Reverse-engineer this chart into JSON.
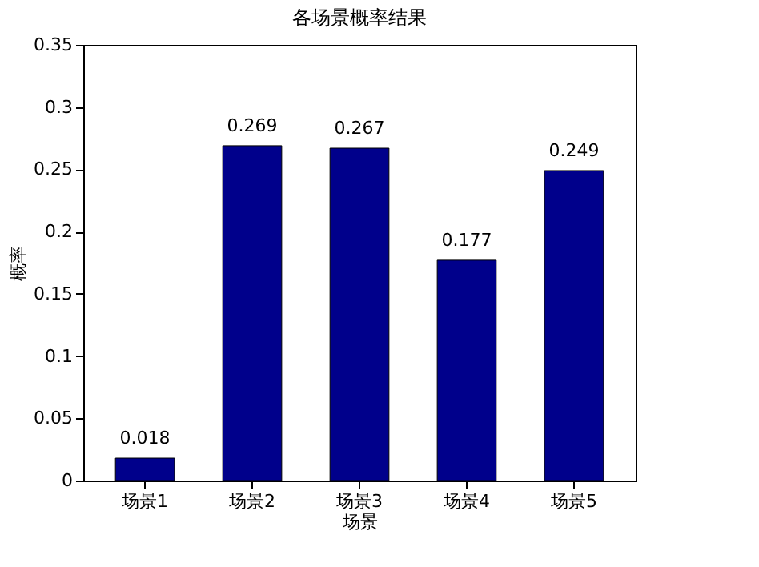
{
  "chart_data": {
    "type": "bar",
    "title": "各场景概率结果",
    "xlabel": "场景",
    "ylabel": "概率",
    "categories": [
      "场景1",
      "场景2",
      "场景3",
      "场景4",
      "场景5"
    ],
    "values": [
      0.018,
      0.269,
      0.267,
      0.177,
      0.249
    ],
    "color": "#00008b",
    "ylim": [
      0,
      0.35
    ],
    "yticks": [
      0,
      0.05,
      0.1,
      0.15,
      0.2,
      0.25,
      0.3,
      0.35
    ],
    "data_labels": true,
    "grid": false
  }
}
